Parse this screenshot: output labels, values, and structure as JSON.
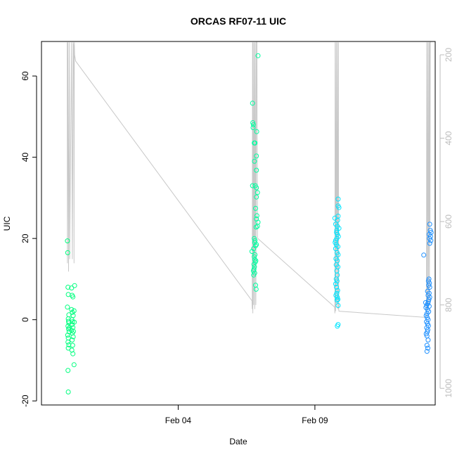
{
  "chart_data": {
    "type": "scatter",
    "title": "ORCAS RF07-11 UIC",
    "xlabel": "Date",
    "ylabel": "UIC",
    "x_ticks": [
      {
        "label": "Feb 04",
        "value": 4.0
      },
      {
        "label": "Feb 09",
        "value": 9.0
      }
    ],
    "xlim": [
      -1.0,
      13.4
    ],
    "ylim": [
      -21,
      68.5
    ],
    "y_ticks": [
      -20,
      0,
      20,
      40,
      60
    ],
    "y2_ticks": [
      200,
      400,
      600,
      800,
      1000
    ],
    "y2lim": [
      1040,
      168
    ],
    "grid": false,
    "series": [
      {
        "color": "#00ff7f",
        "points": [
          [
            -0.05,
            19.4
          ],
          [
            -0.04,
            16.5
          ],
          [
            -0.03,
            8.0
          ],
          [
            -0.02,
            6.2
          ],
          [
            -0.05,
            3.1
          ],
          [
            0.0,
            1.2
          ],
          [
            -0.02,
            0.2
          ],
          [
            0.0,
            -0.8
          ],
          [
            -0.03,
            -1.6
          ],
          [
            -0.01,
            -2.3
          ],
          [
            0.01,
            -3.0
          ],
          [
            -0.04,
            -3.8
          ],
          [
            -0.02,
            -4.5
          ],
          [
            -0.03,
            -5.5
          ],
          [
            0.0,
            -6.2
          ],
          [
            -0.02,
            -7.0
          ],
          [
            -0.03,
            -12.5
          ],
          [
            -0.02,
            -17.8
          ],
          [
            0.02,
            -2.0
          ],
          [
            -0.01,
            -0.4
          ],
          [
            0.1,
            7.8
          ],
          [
            0.12,
            6.0
          ],
          [
            0.15,
            5.6
          ],
          [
            0.1,
            2.5
          ],
          [
            0.13,
            1.8
          ],
          [
            0.16,
            1.0
          ],
          [
            0.11,
            0.0
          ],
          [
            0.14,
            -0.5
          ],
          [
            0.12,
            -1.2
          ],
          [
            0.15,
            -1.9
          ],
          [
            0.1,
            -2.6
          ],
          [
            0.13,
            -3.3
          ],
          [
            0.16,
            -4.2
          ],
          [
            0.12,
            -5.0
          ],
          [
            0.14,
            -6.3
          ],
          [
            0.11,
            -7.5
          ],
          [
            0.15,
            -8.4
          ],
          [
            0.19,
            -11.1
          ],
          [
            0.21,
            8.4
          ],
          [
            0.19,
            2.2
          ],
          [
            0.2,
            -0.6
          ],
          [
            0.17,
            -2.9
          ]
        ]
      },
      {
        "color": "#00ffa0",
        "points": [
          [
            6.72,
            53.3
          ],
          [
            6.73,
            48.5
          ],
          [
            6.75,
            48.0
          ],
          [
            6.74,
            47.3
          ],
          [
            6.78,
            43.5
          ],
          [
            6.81,
            43.5
          ],
          [
            6.87,
            46.3
          ],
          [
            6.79,
            39.0
          ],
          [
            6.86,
            40.3
          ],
          [
            6.86,
            36.8
          ],
          [
            6.82,
            33.0
          ],
          [
            6.72,
            33.0
          ],
          [
            6.86,
            32.5
          ],
          [
            6.9,
            31.3
          ],
          [
            6.86,
            30.2
          ],
          [
            6.83,
            27.4
          ],
          [
            6.88,
            25.6
          ],
          [
            6.86,
            24.8
          ],
          [
            6.92,
            24.0
          ],
          [
            6.9,
            23.0
          ],
          [
            6.85,
            22.8
          ],
          [
            6.78,
            20.0
          ],
          [
            6.81,
            19.5
          ],
          [
            6.8,
            19.0
          ],
          [
            6.86,
            18.5
          ],
          [
            6.83,
            18.2
          ],
          [
            6.76,
            17.5
          ],
          [
            6.7,
            16.8
          ],
          [
            6.78,
            15.5
          ],
          [
            6.8,
            14.8
          ],
          [
            6.82,
            14.2
          ],
          [
            6.77,
            13.6
          ],
          [
            6.79,
            13.0
          ],
          [
            6.77,
            12.4
          ],
          [
            6.75,
            12.0
          ],
          [
            6.8,
            11.5
          ],
          [
            6.76,
            11.0
          ],
          [
            6.83,
            8.5
          ],
          [
            6.85,
            7.5
          ],
          [
            6.92,
            65.0
          ],
          [
            6.84,
            14.5
          ],
          [
            6.81,
            16.0
          ]
        ]
      },
      {
        "color": "#00e5ff",
        "points": [
          [
            9.85,
            29.7
          ],
          [
            9.85,
            28.0
          ],
          [
            9.88,
            27.6
          ],
          [
            9.85,
            25.5
          ],
          [
            9.73,
            25.0
          ],
          [
            9.76,
            23.5
          ],
          [
            9.82,
            23.0
          ],
          [
            9.88,
            22.5
          ],
          [
            9.79,
            21.5
          ],
          [
            9.82,
            21.0
          ],
          [
            9.8,
            20.0
          ],
          [
            9.76,
            19.5
          ],
          [
            9.74,
            19.0
          ],
          [
            9.78,
            18.5
          ],
          [
            9.84,
            18.0
          ],
          [
            9.76,
            17.5
          ],
          [
            9.81,
            16.5
          ],
          [
            9.85,
            16.0
          ],
          [
            9.77,
            15.0
          ],
          [
            9.82,
            14.5
          ],
          [
            9.78,
            13.5
          ],
          [
            9.84,
            13.0
          ],
          [
            9.8,
            12.0
          ],
          [
            9.82,
            11.0
          ],
          [
            9.78,
            10.0
          ],
          [
            9.81,
            9.5
          ],
          [
            9.76,
            8.8
          ],
          [
            9.79,
            8.0
          ],
          [
            9.83,
            7.2
          ],
          [
            9.8,
            6.5
          ],
          [
            9.77,
            6.0
          ],
          [
            9.82,
            5.5
          ],
          [
            9.84,
            5.0
          ],
          [
            9.81,
            4.8
          ],
          [
            9.85,
            3.5
          ],
          [
            9.85,
            -1.2
          ],
          [
            9.82,
            -1.6
          ],
          [
            9.83,
            24.5
          ],
          [
            9.8,
            22.0
          ],
          [
            9.86,
            20.5
          ]
        ]
      },
      {
        "color": "#1e90ff",
        "points": [
          [
            13.2,
            23.5
          ],
          [
            13.22,
            22.0
          ],
          [
            13.25,
            21.5
          ],
          [
            13.18,
            21.0
          ],
          [
            13.23,
            20.5
          ],
          [
            13.19,
            20.0
          ],
          [
            13.24,
            19.5
          ],
          [
            13.2,
            18.8
          ],
          [
            12.98,
            15.9
          ],
          [
            13.17,
            10.0
          ],
          [
            13.15,
            9.5
          ],
          [
            13.19,
            9.0
          ],
          [
            13.16,
            8.5
          ],
          [
            13.2,
            8.0
          ],
          [
            13.12,
            7.0
          ],
          [
            13.18,
            6.5
          ],
          [
            13.14,
            6.0
          ],
          [
            13.2,
            5.5
          ],
          [
            13.17,
            5.0
          ],
          [
            13.15,
            4.5
          ],
          [
            13.13,
            4.0
          ],
          [
            13.09,
            3.5
          ],
          [
            13.06,
            3.0
          ],
          [
            13.12,
            2.5
          ],
          [
            13.16,
            2.0
          ],
          [
            13.1,
            1.5
          ],
          [
            13.07,
            1.0
          ],
          [
            13.11,
            0.5
          ],
          [
            13.14,
            0.0
          ],
          [
            13.08,
            -0.5
          ],
          [
            13.12,
            -1.0
          ],
          [
            13.15,
            -1.5
          ],
          [
            13.09,
            -2.0
          ],
          [
            13.13,
            -2.5
          ],
          [
            13.11,
            -3.0
          ],
          [
            13.07,
            -3.5
          ],
          [
            13.1,
            -4.0
          ],
          [
            13.14,
            -5.0
          ],
          [
            13.1,
            -6.3
          ],
          [
            13.13,
            -7.0
          ],
          [
            13.1,
            -7.8
          ],
          [
            13.05,
            4.2
          ],
          [
            13.18,
            3.3
          ]
        ]
      }
    ],
    "reference_line": {
      "color": "#c8c8c8",
      "axis": "right",
      "points": [
        [
          -0.06,
          170
        ],
        [
          -0.05,
          700
        ],
        [
          -0.03,
          170
        ],
        [
          -0.01,
          720
        ],
        [
          0.02,
          170
        ],
        [
          0.03,
          690
        ],
        [
          0.1,
          170
        ],
        [
          0.13,
          690
        ],
        [
          0.16,
          170
        ],
        [
          0.18,
          180
        ],
        [
          0.19,
          700
        ],
        [
          0.2,
          180
        ],
        [
          0.2,
          170
        ],
        [
          0.21,
          200
        ],
        [
          0.25,
          215
        ],
        [
          6.7,
          790
        ],
        [
          6.71,
          810
        ],
        [
          6.72,
          170
        ],
        [
          6.73,
          820
        ],
        [
          6.74,
          170
        ],
        [
          6.76,
          800
        ],
        [
          6.78,
          170
        ],
        [
          6.8,
          810
        ],
        [
          6.82,
          170
        ],
        [
          6.84,
          800
        ],
        [
          6.86,
          170
        ],
        [
          6.88,
          170
        ],
        [
          6.9,
          640
        ],
        [
          9.72,
          805
        ],
        [
          9.73,
          820
        ],
        [
          9.74,
          170
        ],
        [
          9.76,
          815
        ],
        [
          9.78,
          170
        ],
        [
          9.8,
          800
        ],
        [
          9.82,
          170
        ],
        [
          9.84,
          810
        ],
        [
          9.86,
          170
        ],
        [
          9.87,
          810
        ],
        [
          9.88,
          815
        ],
        [
          13.07,
          830
        ],
        [
          13.08,
          820
        ],
        [
          13.09,
          170
        ],
        [
          13.11,
          810
        ],
        [
          13.13,
          170
        ],
        [
          13.15,
          800
        ],
        [
          13.17,
          170
        ],
        [
          13.19,
          790
        ],
        [
          13.2,
          170
        ],
        [
          13.21,
          600
        ],
        [
          13.22,
          170
        ],
        [
          13.24,
          170
        ]
      ]
    }
  }
}
